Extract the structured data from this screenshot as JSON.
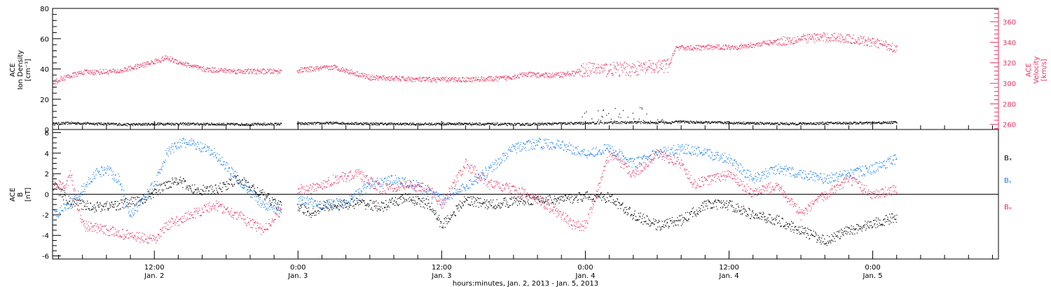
{
  "colors": {
    "black": "#000000",
    "pink": "#e8325e",
    "blue": "#1a7ff0"
  },
  "top_panel": {
    "left_label_lines": [
      "ACE",
      "Ion Density",
      "[cm⁻³]"
    ],
    "right_label_lines": [
      "ACE",
      "Velocity",
      "[km/s]"
    ]
  },
  "bottom_panel": {
    "left_label_lines": [
      "ACE",
      "B",
      "[nT]"
    ],
    "legend": [
      {
        "text": "Bₓ",
        "series": "Bx"
      },
      {
        "text": "Bᵧ",
        "series": "By"
      },
      {
        "text": "Bₔ",
        "series": "Bz"
      }
    ]
  },
  "x_axis": {
    "title": "hours:minutes, Jan.  2, 2013 - Jan.  5, 2013",
    "ticks": [
      {
        "hours": 12,
        "time": "12:00",
        "date": "Jan. 2"
      },
      {
        "hours": 24,
        "time": "0:00",
        "date": "Jan. 3"
      },
      {
        "hours": 36,
        "time": "12:00",
        "date": "Jan. 3"
      },
      {
        "hours": 48,
        "time": "0:00",
        "date": "Jan. 4"
      },
      {
        "hours": 60,
        "time": "12:00",
        "date": "Jan. 4"
      },
      {
        "hours": 72,
        "time": "0:00",
        "date": "Jan. 5"
      }
    ]
  },
  "chart_data": [
    {
      "type": "scatter",
      "panel": "top",
      "title": "",
      "xlabel": "hours:minutes, Jan.  2, 2013 - Jan.  5, 2013",
      "x_unit": "hours since Jan. 2 0:00",
      "xlim": [
        3.5,
        82.5
      ],
      "ylabel": "ACE Ion Density [cm⁻³]",
      "ylim": [
        0,
        80
      ],
      "yticks": [
        0,
        20,
        40,
        60,
        80
      ],
      "y2label": "ACE Velocity [km/s]",
      "y2lim": [
        255,
        373
      ],
      "y2ticks": [
        260,
        280,
        300,
        320,
        340,
        360
      ],
      "series": [
        {
          "key": "density",
          "axis": "left",
          "color": "pink_free",
          "x": [
            3.5,
            5,
            10,
            13,
            16,
            20,
            24,
            27,
            30,
            34,
            38,
            42,
            44,
            48,
            52,
            55,
            55.5,
            57,
            61,
            65,
            69,
            72,
            74
          ],
          "values": [
            4,
            4.5,
            3.5,
            4,
            3.8,
            3.6,
            4,
            4.5,
            4,
            3.8,
            4,
            3.6,
            3.8,
            4.5,
            5,
            4.5,
            5.5,
            5,
            4.5,
            4,
            4.5,
            4.5,
            5
          ]
        },
        {
          "key": "velocity",
          "axis": "right",
          "color": "pink",
          "x": [
            3.5,
            4.5,
            6,
            9,
            11,
            13,
            14,
            16,
            19,
            22.5,
            24,
            27,
            30,
            34,
            38,
            41,
            43,
            45,
            47,
            48,
            51,
            54,
            55,
            55.5,
            57,
            61,
            64,
            67,
            69,
            71,
            73,
            74
          ],
          "values": [
            301,
            306,
            311,
            312,
            318,
            325,
            321,
            314,
            312,
            312,
            313,
            316,
            306,
            304,
            304,
            305,
            309,
            308,
            310,
            314,
            314,
            316,
            318,
            335,
            335,
            336,
            341,
            345,
            345,
            342,
            338,
            334
          ]
        }
      ]
    },
    {
      "type": "scatter",
      "panel": "bottom",
      "title": "",
      "xlabel": "hours:minutes, Jan.  2, 2013 - Jan.  5, 2013",
      "x_unit": "hours since Jan. 2 0:00",
      "xlim": [
        3.5,
        82.5
      ],
      "ylabel": "ACE B [nT]",
      "ylim": [
        -6.3,
        6.3
      ],
      "yticks": [
        -6,
        -4,
        -2,
        0,
        2,
        4,
        6
      ],
      "series": [
        {
          "name": "Bx",
          "key": "Bx",
          "color": "black",
          "x": [
            3.5,
            5,
            7,
            9,
            11,
            13,
            14,
            15,
            17,
            19,
            21,
            23,
            24,
            25,
            26,
            29,
            31,
            33,
            35,
            36,
            38,
            40,
            43,
            46,
            48,
            50,
            52,
            54,
            56,
            58,
            60,
            62,
            64,
            66,
            68,
            70,
            72,
            74
          ],
          "values": [
            1,
            -0.8,
            -1.2,
            -1,
            -0.5,
            1,
            1.5,
            0.5,
            0.4,
            1.5,
            0,
            -1.5,
            -1.2,
            -1.8,
            -1.2,
            -0.8,
            -1.2,
            -0.3,
            -1,
            -3,
            -0.5,
            -1,
            -0.5,
            -0.5,
            -0.2,
            -0.3,
            -2,
            -3,
            -2.5,
            -1,
            -1,
            -2,
            -2.5,
            -3.5,
            -4.5,
            -3.5,
            -2.8,
            -2.2
          ]
        },
        {
          "name": "By",
          "key": "By",
          "color": "blue",
          "x": [
            3.5,
            5,
            7,
            8,
            9,
            10,
            12,
            13,
            14,
            15,
            17,
            19,
            21,
            23,
            24,
            26,
            28,
            30,
            32,
            34,
            36,
            38,
            40,
            42,
            44,
            46,
            48,
            50,
            52,
            54,
            56,
            58,
            60,
            62,
            64,
            66,
            68,
            70,
            72,
            74
          ],
          "values": [
            -2,
            -1,
            2,
            2.5,
            1.5,
            -2,
            1,
            4,
            5,
            5,
            4,
            1.5,
            -1,
            -1.5,
            -0.5,
            -1,
            -0.8,
            1,
            1.5,
            0.8,
            -0.5,
            0.8,
            2.5,
            4.5,
            5,
            4.8,
            4,
            4.5,
            3,
            4,
            4.5,
            4,
            3.5,
            1.5,
            2.5,
            2,
            1.5,
            2,
            2.5,
            3.5
          ]
        },
        {
          "name": "Bz",
          "key": "Bz",
          "color": "pink",
          "x": [
            3.5,
            4.5,
            5,
            6,
            8,
            10,
            12,
            13,
            15,
            17,
            19,
            21,
            23,
            24,
            25,
            27,
            29,
            31,
            33,
            35,
            36,
            38,
            40,
            42,
            44,
            46,
            47,
            48,
            50,
            52,
            54,
            56,
            57,
            60,
            62,
            64,
            66,
            68,
            70,
            72,
            74
          ],
          "values": [
            1.5,
            0.5,
            2,
            -3,
            -3.5,
            -4,
            -4.5,
            -3,
            -2,
            -1,
            -2,
            -3.5,
            -1,
            0.5,
            0.5,
            1.5,
            2,
            0.5,
            1,
            0.5,
            -1,
            3,
            1,
            0.5,
            -0.5,
            -2,
            -3,
            -3,
            4,
            2,
            4,
            3,
            1,
            2,
            0,
            1,
            -2,
            0,
            1.5,
            0,
            0.5
          ]
        }
      ]
    }
  ]
}
